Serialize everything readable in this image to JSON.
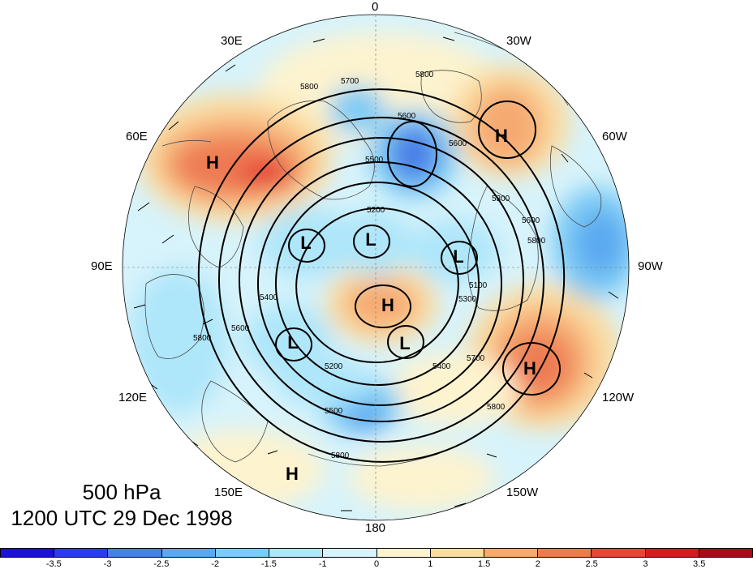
{
  "level_label": "500 hPa",
  "time_label": "1200 UTC 29 Dec 1998",
  "longitudes": {
    "lon_0": "0",
    "lon_30e": "30E",
    "lon_30w": "30W",
    "lon_60e": "60E",
    "lon_60w": "60W",
    "lon_90e": "90E",
    "lon_90w": "90W",
    "lon_120e": "120E",
    "lon_120w": "120W",
    "lon_150e": "150E",
    "lon_150w": "150W",
    "lon_180": "180"
  },
  "pressure_centers": [
    "H",
    "H",
    "H",
    "H",
    "H",
    "L",
    "L",
    "L",
    "L",
    "L"
  ],
  "contour_labels": [
    "5800",
    "5700",
    "5800",
    "5600",
    "5600",
    "5500",
    "5200",
    "5300",
    "5600",
    "5800",
    "5400",
    "5600",
    "5800",
    "5100",
    "5200",
    "5300",
    "5400",
    "5500",
    "5700",
    "5800",
    "5800"
  ],
  "colorbar": {
    "ticks": [
      "-3.5",
      "-3",
      "-2.5",
      "-2",
      "-1.5",
      "-1",
      "0",
      "1",
      "1.5",
      "2",
      "2.5",
      "3",
      "3.5"
    ],
    "colors": [
      "#1a12d9",
      "#2a3cf0",
      "#4a7fe6",
      "#5aa8f0",
      "#7dcbf5",
      "#aee6fa",
      "#d7f3fb",
      "#fdf3cf",
      "#fbdca0",
      "#f5aa72",
      "#ee7a52",
      "#e64538",
      "#d51a22",
      "#a80c18"
    ]
  },
  "colors": {
    "contour": "#000000",
    "coast": "#4a4a4a",
    "background": "#ffffff"
  }
}
